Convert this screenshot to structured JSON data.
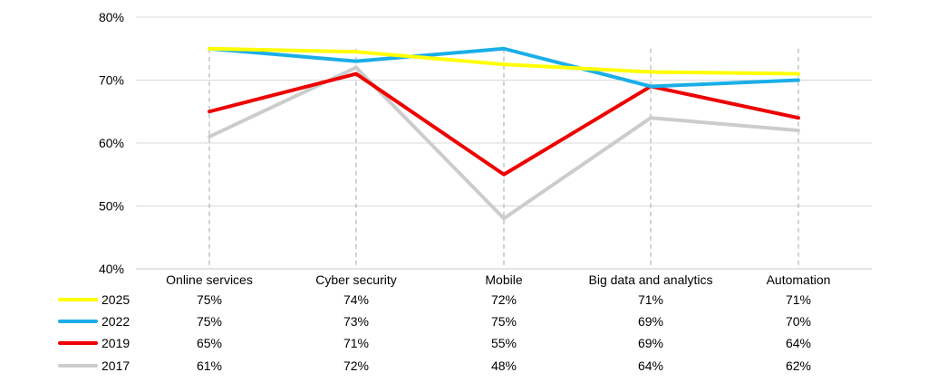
{
  "chart_data": {
    "type": "line",
    "categories": [
      "Online services",
      "Cyber security",
      "Mobile",
      "Big data and analytics",
      "Automation"
    ],
    "ylim": [
      40,
      80
    ],
    "yticks": [
      "40%",
      "50%",
      "60%",
      "70%",
      "80%"
    ],
    "ytick_values": [
      40,
      50,
      60,
      70,
      80
    ],
    "grid": true,
    "legend": "data table below chart",
    "series": [
      {
        "name": "2025",
        "color": "#ffff00",
        "values": [
          75,
          74.5,
          72.5,
          71.3,
          71
        ],
        "labels": [
          "75%",
          "74%",
          "72%",
          "71%",
          "71%"
        ]
      },
      {
        "name": "2022",
        "color": "#1aaee8",
        "values": [
          75,
          73,
          75,
          69,
          70
        ],
        "labels": [
          "75%",
          "73%",
          "75%",
          "69%",
          "70%"
        ]
      },
      {
        "name": "2019",
        "color": "#ee0000",
        "values": [
          65,
          71,
          55,
          69,
          64
        ],
        "labels": [
          "65%",
          "71%",
          "55%",
          "69%",
          "64%"
        ]
      },
      {
        "name": "2017",
        "color": "#cccccc",
        "values": [
          61,
          72,
          48,
          64,
          62
        ],
        "labels": [
          "61%",
          "72%",
          "48%",
          "64%",
          "62%"
        ]
      }
    ]
  }
}
